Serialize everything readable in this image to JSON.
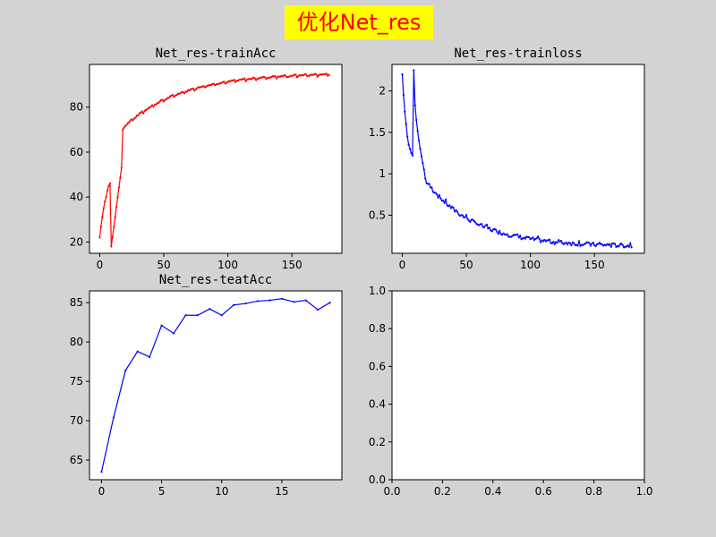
{
  "suptitle": "优化Net_res",
  "colors": {
    "background": "#d3d3d3",
    "title_bg": "#ffff00",
    "title_text": "#ff0000",
    "train_acc": "#ff0000",
    "train_loss": "#0000ff",
    "test_acc": "#0000ff"
  },
  "chart_data": [
    {
      "type": "line",
      "title": "Net_res-trainAcc",
      "xlim": [
        -8,
        189
      ],
      "ylim": [
        15,
        99
      ],
      "xticks": [
        0,
        50,
        100,
        150
      ],
      "yticks": [
        20,
        40,
        60,
        80
      ],
      "series": [
        {
          "color": "#ff0000",
          "x": [],
          "y": []
        }
      ]
    },
    {
      "type": "line",
      "title": "Net_res-trainloss",
      "xlim": [
        -8,
        189
      ],
      "ylim": [
        0.04,
        2.32
      ],
      "xticks": [
        0,
        50,
        100,
        150
      ],
      "yticks": [
        0.5,
        1.0,
        1.5,
        2.0
      ],
      "series": [
        {
          "color": "#0000ff",
          "x": [],
          "y": []
        }
      ]
    },
    {
      "type": "line",
      "title": "Net_res-teatAcc",
      "xlim": [
        -1,
        20
      ],
      "ylim": [
        62.5,
        86.5
      ],
      "xticks": [
        0,
        5,
        10,
        15
      ],
      "yticks": [
        65,
        70,
        75,
        80,
        85
      ],
      "series": [
        {
          "color": "#0000ff",
          "x": [
            0,
            1,
            2,
            3,
            4,
            5,
            6,
            7,
            8,
            9,
            10,
            11,
            12,
            13,
            14,
            15,
            16,
            17,
            18,
            19
          ],
          "y": [
            63.5,
            70.4,
            76.4,
            78.8,
            78.1,
            82.1,
            81.1,
            83.4,
            83.4,
            84.2,
            83.4,
            84.7,
            84.9,
            85.2,
            85.3,
            85.5,
            85.1,
            85.3,
            84.1,
            85.0
          ]
        }
      ]
    },
    {
      "type": "line",
      "title": "",
      "xlim": [
        0,
        1
      ],
      "ylim": [
        0,
        1
      ],
      "xticks": [
        0.0,
        0.2,
        0.4,
        0.6,
        0.8,
        1.0
      ],
      "yticks": [
        0.0,
        0.2,
        0.4,
        0.6,
        0.8,
        1.0
      ],
      "xtick_labels": [
        "0.0",
        "0.2",
        "0.4",
        "0.6",
        "0.8",
        "1.0"
      ],
      "ytick_labels": [
        "0.0",
        "0.2",
        "0.4",
        "0.6",
        "0.8",
        "1.0"
      ],
      "series": []
    }
  ]
}
